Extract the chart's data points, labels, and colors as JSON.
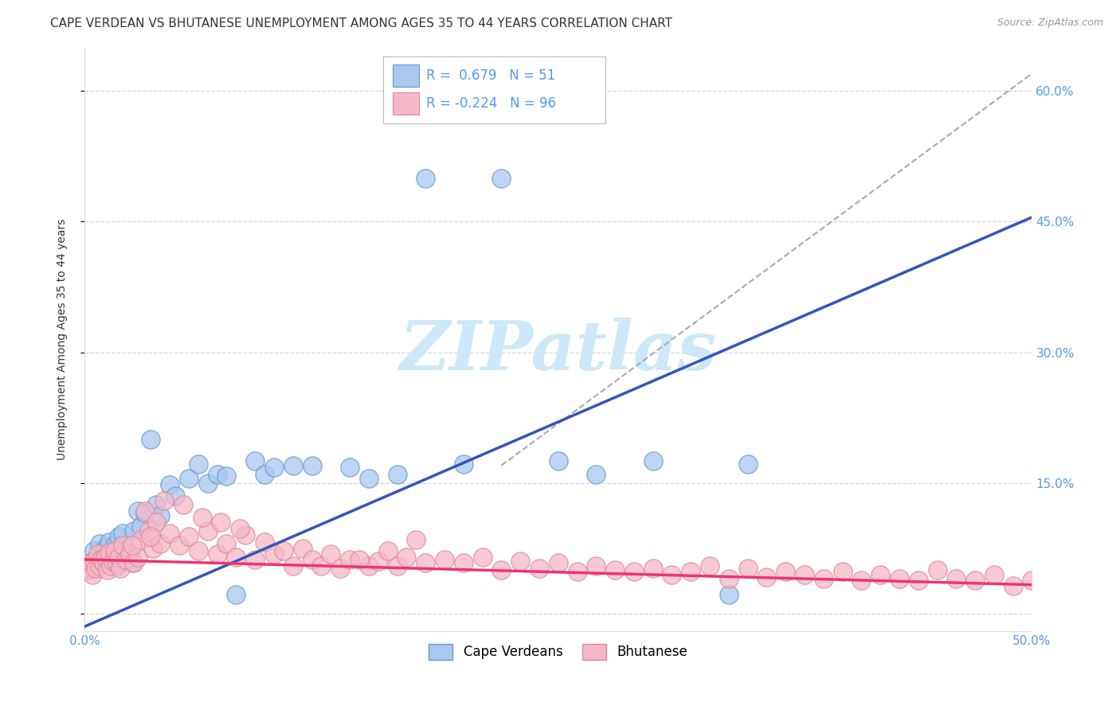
{
  "title": "CAPE VERDEAN VS BHUTANESE UNEMPLOYMENT AMONG AGES 35 TO 44 YEARS CORRELATION CHART",
  "source": "Source: ZipAtlas.com",
  "ylabel": "Unemployment Among Ages 35 to 44 years",
  "xlim": [
    0.0,
    0.5
  ],
  "ylim": [
    -0.02,
    0.65
  ],
  "yticks": [
    0.0,
    0.15,
    0.3,
    0.45,
    0.6
  ],
  "ytick_labels_right": [
    "",
    "15.0%",
    "30.0%",
    "45.0%",
    "60.0%"
  ],
  "xticks": [
    0.0,
    0.1,
    0.2,
    0.3,
    0.4,
    0.5
  ],
  "xtick_labels": [
    "0.0%",
    "",
    "",
    "",
    "",
    "50.0%"
  ],
  "grid_color": "#cccccc",
  "background_color": "#ffffff",
  "watermark": "ZIPatlas",
  "watermark_color": "#cde8f8",
  "cape_verdean_color": "#a8c8f0",
  "cape_verdean_edge": "#6699cc",
  "bhutanese_color": "#f5b8c8",
  "bhutanese_edge": "#dd8899",
  "blue_line_color": "#3355bb",
  "pink_line_color": "#ee3377",
  "gray_dashed_color": "#aaaaaa",
  "R_cv": 0.679,
  "N_cv": 51,
  "R_bh": -0.224,
  "N_bh": 96,
  "title_fontsize": 11,
  "axis_label_fontsize": 10,
  "tick_fontsize": 11,
  "legend_fontsize": 12,
  "source_fontsize": 9,
  "tick_color": "#5599ee",
  "blue_line_x0": 0.0,
  "blue_line_y0": -0.015,
  "blue_line_x1": 0.5,
  "blue_line_y1": 0.455,
  "pink_line_x0": 0.0,
  "pink_line_y0": 0.062,
  "pink_line_x1": 0.5,
  "pink_line_y1": 0.033,
  "gray_line_x0": 0.22,
  "gray_line_y0": 0.17,
  "gray_line_x1": 0.5,
  "gray_line_y1": 0.62,
  "cape_verdean_points_x": [
    0.003,
    0.005,
    0.007,
    0.008,
    0.009,
    0.01,
    0.011,
    0.012,
    0.013,
    0.014,
    0.015,
    0.016,
    0.017,
    0.018,
    0.019,
    0.02,
    0.021,
    0.022,
    0.023,
    0.025,
    0.026,
    0.028,
    0.03,
    0.032,
    0.035,
    0.038,
    0.04,
    0.045,
    0.048,
    0.055,
    0.06,
    0.065,
    0.07,
    0.075,
    0.08,
    0.09,
    0.095,
    0.1,
    0.11,
    0.12,
    0.14,
    0.15,
    0.165,
    0.18,
    0.2,
    0.22,
    0.25,
    0.27,
    0.3,
    0.34,
    0.35
  ],
  "cape_verdean_points_y": [
    0.052,
    0.072,
    0.06,
    0.08,
    0.062,
    0.068,
    0.075,
    0.058,
    0.082,
    0.065,
    0.07,
    0.078,
    0.055,
    0.088,
    0.06,
    0.092,
    0.065,
    0.072,
    0.068,
    0.058,
    0.095,
    0.118,
    0.1,
    0.115,
    0.2,
    0.125,
    0.112,
    0.148,
    0.135,
    0.155,
    0.172,
    0.15,
    0.16,
    0.158,
    0.022,
    0.175,
    0.16,
    0.168,
    0.17,
    0.17,
    0.168,
    0.155,
    0.16,
    0.5,
    0.172,
    0.5,
    0.175,
    0.16,
    0.175,
    0.022,
    0.172
  ],
  "bhutanese_points_x": [
    0.002,
    0.003,
    0.004,
    0.005,
    0.006,
    0.007,
    0.008,
    0.009,
    0.01,
    0.011,
    0.012,
    0.013,
    0.014,
    0.015,
    0.016,
    0.017,
    0.018,
    0.019,
    0.02,
    0.022,
    0.024,
    0.026,
    0.028,
    0.03,
    0.032,
    0.034,
    0.036,
    0.038,
    0.04,
    0.045,
    0.05,
    0.055,
    0.06,
    0.065,
    0.07,
    0.075,
    0.08,
    0.085,
    0.09,
    0.095,
    0.1,
    0.11,
    0.115,
    0.12,
    0.125,
    0.13,
    0.135,
    0.14,
    0.15,
    0.155,
    0.16,
    0.165,
    0.17,
    0.18,
    0.19,
    0.2,
    0.21,
    0.22,
    0.23,
    0.24,
    0.25,
    0.26,
    0.27,
    0.28,
    0.29,
    0.3,
    0.31,
    0.32,
    0.33,
    0.34,
    0.35,
    0.36,
    0.37,
    0.38,
    0.39,
    0.4,
    0.41,
    0.42,
    0.43,
    0.44,
    0.45,
    0.46,
    0.47,
    0.48,
    0.49,
    0.5,
    0.025,
    0.035,
    0.042,
    0.052,
    0.062,
    0.072,
    0.082,
    0.105,
    0.145,
    0.175
  ],
  "bhutanese_points_y": [
    0.05,
    0.058,
    0.045,
    0.06,
    0.052,
    0.068,
    0.055,
    0.062,
    0.058,
    0.065,
    0.05,
    0.07,
    0.055,
    0.06,
    0.072,
    0.058,
    0.065,
    0.052,
    0.078,
    0.062,
    0.068,
    0.058,
    0.065,
    0.085,
    0.118,
    0.095,
    0.075,
    0.105,
    0.08,
    0.092,
    0.078,
    0.088,
    0.072,
    0.095,
    0.068,
    0.08,
    0.065,
    0.09,
    0.062,
    0.082,
    0.068,
    0.055,
    0.075,
    0.062,
    0.055,
    0.068,
    0.052,
    0.062,
    0.055,
    0.06,
    0.072,
    0.055,
    0.065,
    0.058,
    0.062,
    0.058,
    0.065,
    0.05,
    0.06,
    0.052,
    0.058,
    0.048,
    0.055,
    0.05,
    0.048,
    0.052,
    0.045,
    0.048,
    0.055,
    0.04,
    0.052,
    0.042,
    0.048,
    0.045,
    0.04,
    0.048,
    0.038,
    0.045,
    0.04,
    0.038,
    0.05,
    0.04,
    0.038,
    0.045,
    0.032,
    0.038,
    0.078,
    0.088,
    0.13,
    0.125,
    0.11,
    0.105,
    0.098,
    0.072,
    0.062,
    0.085
  ]
}
